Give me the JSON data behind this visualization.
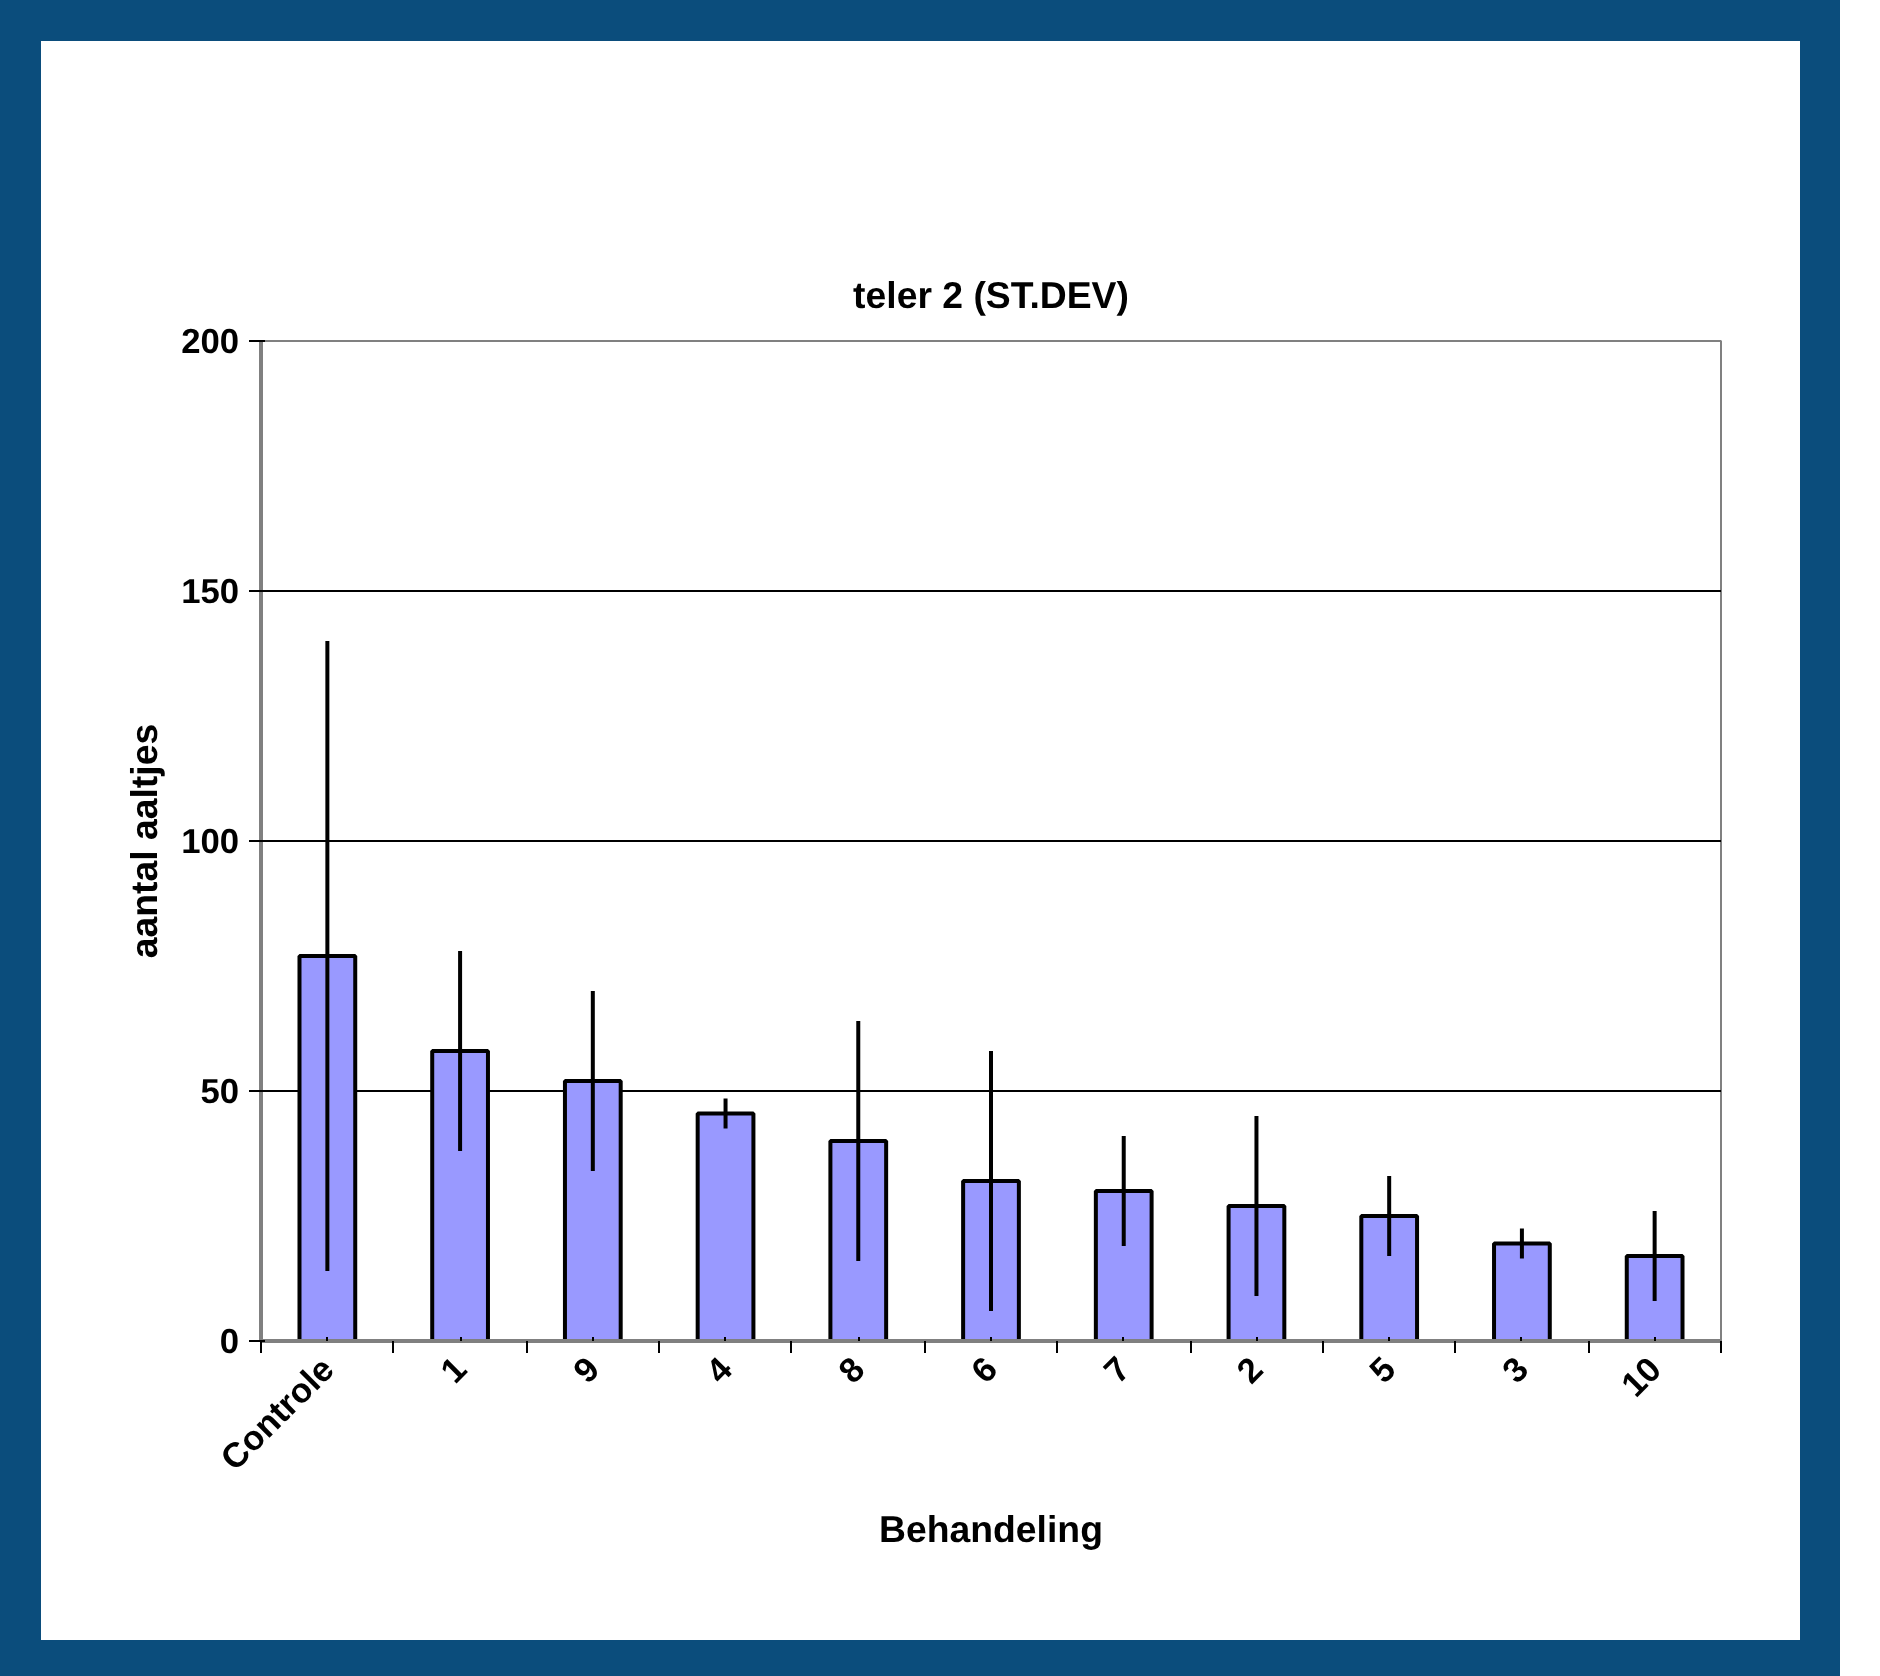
{
  "chart_data": {
    "type": "bar",
    "title": "teler 2 (ST.DEV)",
    "xlabel": "Behandeling",
    "ylabel": "aantal aaltjes",
    "categories": [
      "Controle",
      "1",
      "9",
      "4",
      "8",
      "6",
      "7",
      "2",
      "5",
      "3",
      "10"
    ],
    "values": [
      77,
      58,
      52,
      45.5,
      40,
      32,
      30,
      27,
      25,
      19.5,
      17
    ],
    "errors": [
      63,
      20,
      18,
      3,
      24,
      26,
      11,
      18,
      8,
      3,
      9
    ],
    "color": "#9999ff",
    "ylim": [
      0,
      200
    ],
    "yticks": [
      0,
      50,
      100,
      150,
      200
    ],
    "grid": "y"
  }
}
